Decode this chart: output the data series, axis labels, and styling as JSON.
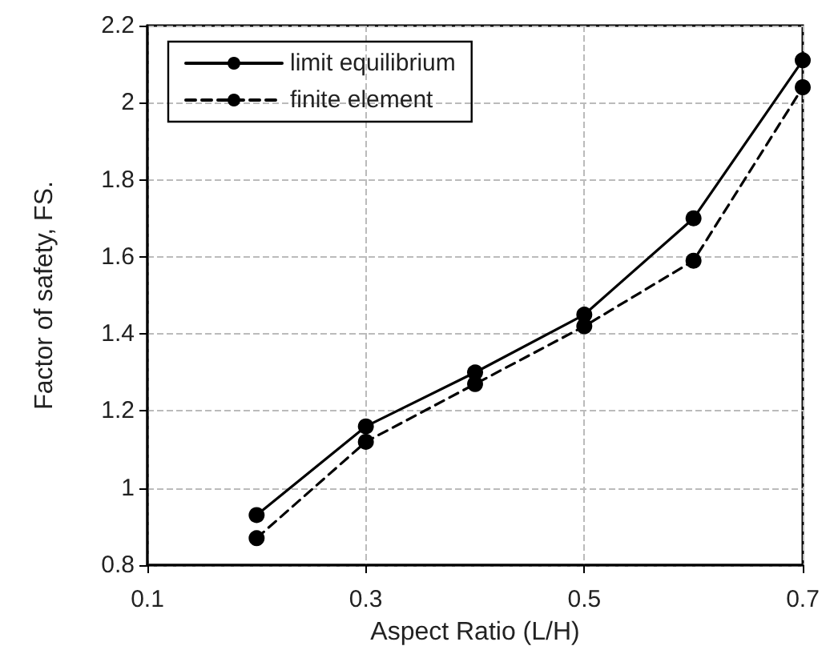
{
  "chart_data": {
    "type": "line",
    "xlabel": "Aspect Ratio (L/H)",
    "ylabel": "Factor of safety, FS.",
    "x": [
      0.2,
      0.3,
      0.4,
      0.5,
      0.6,
      0.7
    ],
    "series": [
      {
        "name": "limit equilibrium",
        "color": "#000000",
        "line_style": "solid",
        "values": [
          0.93,
          1.16,
          1.3,
          1.45,
          1.7,
          2.11
        ]
      },
      {
        "name": "finite element",
        "color": "#000000",
        "line_style": "dashed",
        "values": [
          0.87,
          1.12,
          1.27,
          1.42,
          1.59,
          2.04
        ]
      }
    ],
    "xlim": [
      0.1,
      0.7
    ],
    "xticks": [
      0.1,
      0.3,
      0.5,
      0.7
    ],
    "ylim": [
      0.8,
      2.2
    ],
    "yticks": [
      0.8,
      1,
      1.2,
      1.4,
      1.6,
      1.8,
      2,
      2.2
    ],
    "grid": true,
    "legend": "top left",
    "marker": "circle"
  }
}
